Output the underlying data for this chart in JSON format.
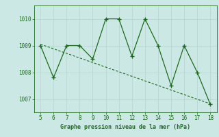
{
  "x": [
    5,
    6,
    7,
    8,
    9,
    10,
    11,
    12,
    13,
    14,
    15,
    16,
    17,
    18
  ],
  "y": [
    1009.0,
    1007.8,
    1009.0,
    1009.0,
    1008.5,
    1010.0,
    1010.0,
    1008.6,
    1010.0,
    1009.0,
    1007.5,
    1009.0,
    1008.0,
    1006.8
  ],
  "trend_x": [
    5,
    18
  ],
  "trend_y": [
    1009.05,
    1006.82
  ],
  "line_color": "#1a6b1a",
  "bg_color": "#cce8e4",
  "grid_color": "#b8d8d4",
  "xlabel": "Graphe pression niveau de la mer (hPa)",
  "xlim": [
    4.5,
    18.5
  ],
  "ylim": [
    1006.5,
    1010.5
  ],
  "yticks": [
    1007,
    1008,
    1009,
    1010
  ],
  "xticks": [
    5,
    6,
    7,
    8,
    9,
    10,
    11,
    12,
    13,
    14,
    15,
    16,
    17,
    18
  ]
}
